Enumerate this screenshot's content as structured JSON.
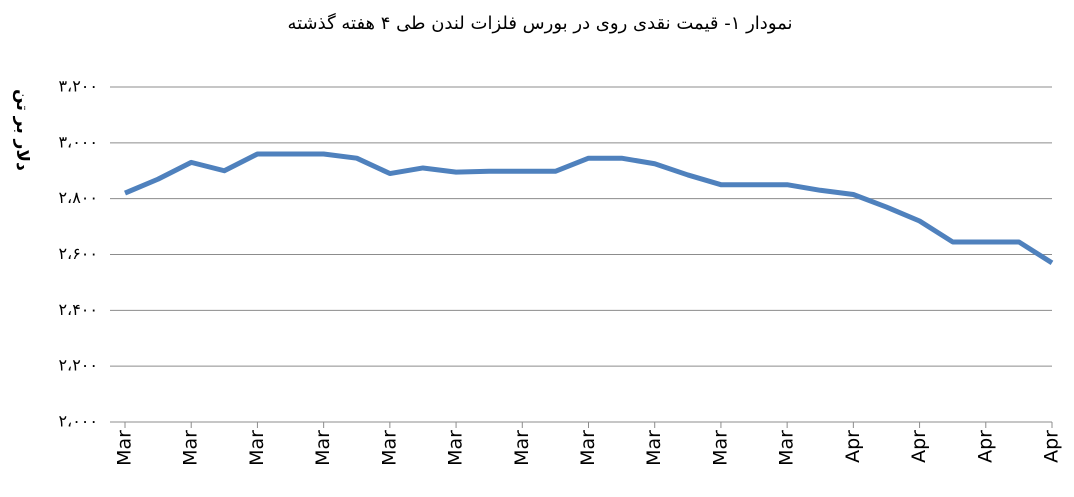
{
  "chart_data": {
    "type": "line",
    "title": "نمودار ۱- قیمت نقدی روی  در بورس فلزات لندن طی ۴ هفته گذشته",
    "y_label": "دلار بر تن",
    "categories": [
      "Mar",
      null,
      "Mar",
      null,
      "Mar",
      null,
      "Mar",
      null,
      "Mar",
      null,
      "Mar",
      null,
      "Mar",
      null,
      "Mar",
      null,
      "Mar",
      null,
      "Mar",
      null,
      "Mar",
      null,
      "Apr",
      null,
      "Apr",
      null,
      "Apr",
      null,
      "Apr"
    ],
    "series": [
      {
        "name": "قیمت نقدی روی",
        "color": "#4f81bd",
        "values": [
          2820,
          2870,
          2930,
          2900,
          2960,
          2960,
          2960,
          2945,
          2890,
          2910,
          2895,
          2898,
          2898,
          2898,
          2945,
          2945,
          2925,
          2885,
          2850,
          2850,
          2850,
          2830,
          2815,
          2770,
          2720,
          2645,
          2645,
          2645,
          2570
        ]
      }
    ],
    "ylim": [
      2000,
      3200
    ],
    "yticks": [
      {
        "value": 2000,
        "label": "۲،۰۰۰"
      },
      {
        "value": 2200,
        "label": "۲،۲۰۰"
      },
      {
        "value": 2400,
        "label": "۲،۴۰۰"
      },
      {
        "value": 2600,
        "label": "۲،۶۰۰"
      },
      {
        "value": 2800,
        "label": "۲،۸۰۰"
      },
      {
        "value": 3000,
        "label": "۳،۰۰۰"
      },
      {
        "value": 3200,
        "label": "۳،۲۰۰"
      }
    ],
    "grid": true
  }
}
